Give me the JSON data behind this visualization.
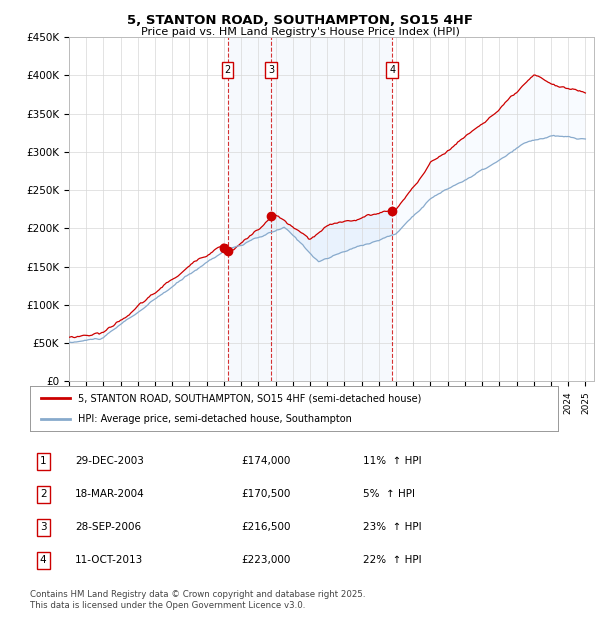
{
  "title": "5, STANTON ROAD, SOUTHAMPTON, SO15 4HF",
  "subtitle": "Price paid vs. HM Land Registry's House Price Index (HPI)",
  "ylim": [
    0,
    450000
  ],
  "yticks": [
    0,
    50000,
    100000,
    150000,
    200000,
    250000,
    300000,
    350000,
    400000,
    450000
  ],
  "ytick_labels": [
    "£0",
    "£50K",
    "£100K",
    "£150K",
    "£200K",
    "£250K",
    "£300K",
    "£350K",
    "£400K",
    "£450K"
  ],
  "xlim_start": 1995.0,
  "xlim_end": 2025.5,
  "background_color": "#ffffff",
  "grid_color": "#d8d8d8",
  "red_color": "#cc0000",
  "blue_color": "#88aacc",
  "blue_fill_color": "#ddeeff",
  "transactions": [
    {
      "num": 1,
      "date": "29-DEC-2003",
      "year": 2003.99,
      "price": 174000,
      "pct": "11%",
      "dir": "↑",
      "show_on_chart": false
    },
    {
      "num": 2,
      "date": "18-MAR-2004",
      "year": 2004.21,
      "price": 170500,
      "pct": "5%",
      "dir": "↑",
      "show_on_chart": true
    },
    {
      "num": 3,
      "date": "28-SEP-2006",
      "year": 2006.75,
      "price": 216500,
      "pct": "23%",
      "dir": "↑",
      "show_on_chart": true
    },
    {
      "num": 4,
      "date": "11-OCT-2013",
      "year": 2013.78,
      "price": 223000,
      "pct": "22%",
      "dir": "↑",
      "show_on_chart": true
    }
  ],
  "legend_red": "5, STANTON ROAD, SOUTHAMPTON, SO15 4HF (semi-detached house)",
  "legend_blue": "HPI: Average price, semi-detached house, Southampton",
  "footer": "Contains HM Land Registry data © Crown copyright and database right 2025.\nThis data is licensed under the Open Government Licence v3.0."
}
